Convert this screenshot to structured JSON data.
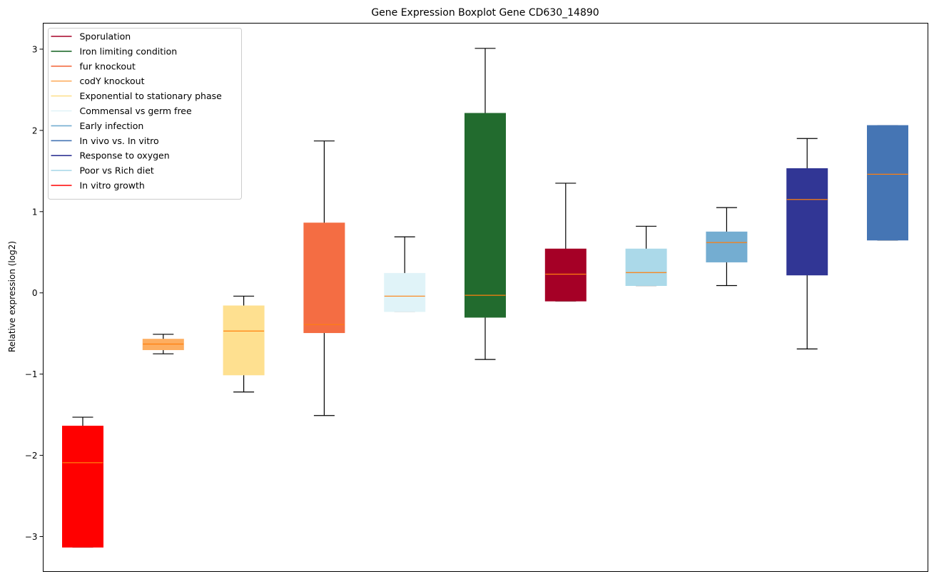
{
  "chart_data": {
    "type": "boxplot",
    "title": "Gene Expression Boxplot Gene CD630_14890",
    "xlabel": "",
    "ylabel": "Relative expression (log2)",
    "ylim": [
      -3.43,
      3.32
    ],
    "yticks": [
      -3,
      -2,
      -1,
      0,
      1,
      2,
      3
    ],
    "ytick_labels": [
      "−3",
      "−2",
      "−1",
      "0",
      "1",
      "2",
      "3"
    ],
    "grid": false,
    "legend_position": "top-left",
    "median_color": "#ff7f0e",
    "legend": [
      {
        "label": "Sporulation",
        "color": "#a50026"
      },
      {
        "label": "Iron limiting condition",
        "color": "#226b2e"
      },
      {
        "label": "fur knockout",
        "color": "#f46d43"
      },
      {
        "label": "codY knockout",
        "color": "#fdae61"
      },
      {
        "label": "Exponential to stationary phase",
        "color": "#fee090"
      },
      {
        "label": "Commensal vs germ free",
        "color": "#e0f3f8"
      },
      {
        "label": "Early infection",
        "color": "#74add1"
      },
      {
        "label": "In vivo vs. In vitro",
        "color": "#4575b4"
      },
      {
        "label": "Response to oxygen",
        "color": "#313695"
      },
      {
        "label": "Poor vs Rich diet",
        "color": "#abd9e9"
      },
      {
        "label": "In vitro growth",
        "color": "#ff0000"
      }
    ],
    "boxes": [
      {
        "name": "In vitro growth",
        "color": "#ff0000",
        "whisker_low": -3.13,
        "q1": -3.13,
        "median": -2.09,
        "q3": -1.64,
        "whisker_high": -1.53
      },
      {
        "name": "codY knockout",
        "color": "#fdae61",
        "whisker_low": -0.75,
        "q1": -0.7,
        "median": -0.63,
        "q3": -0.57,
        "whisker_high": -0.51
      },
      {
        "name": "Exponential to stationary phase",
        "color": "#fee090",
        "whisker_low": -1.22,
        "q1": -1.01,
        "median": -0.47,
        "q3": -0.16,
        "whisker_high": -0.04
      },
      {
        "name": "fur knockout",
        "color": "#f46d43",
        "whisker_low": -1.51,
        "q1": -0.49,
        "median": -0.39,
        "q3": 0.86,
        "whisker_high": 1.87
      },
      {
        "name": "Commensal vs germ free",
        "color": "#e0f3f8",
        "whisker_low": -0.23,
        "q1": -0.23,
        "median": -0.04,
        "q3": 0.24,
        "whisker_high": 0.69
      },
      {
        "name": "Iron limiting condition",
        "color": "#226b2e",
        "whisker_low": -0.82,
        "q1": -0.3,
        "median": -0.03,
        "q3": 2.21,
        "whisker_high": 3.01
      },
      {
        "name": "Sporulation",
        "color": "#a50026",
        "whisker_low": -0.1,
        "q1": -0.1,
        "median": 0.23,
        "q3": 0.54,
        "whisker_high": 1.35
      },
      {
        "name": "Poor vs Rich diet",
        "color": "#abd9e9",
        "whisker_low": 0.09,
        "q1": 0.09,
        "median": 0.25,
        "q3": 0.54,
        "whisker_high": 0.82
      },
      {
        "name": "Early infection",
        "color": "#74add1",
        "whisker_low": 0.09,
        "q1": 0.38,
        "median": 0.62,
        "q3": 0.75,
        "whisker_high": 1.05
      },
      {
        "name": "Response to oxygen",
        "color": "#313695",
        "whisker_low": -0.69,
        "q1": 0.22,
        "median": 1.15,
        "q3": 1.53,
        "whisker_high": 1.9
      },
      {
        "name": "In vivo vs. In vitro",
        "color": "#4575b4",
        "whisker_low": 0.65,
        "q1": 0.65,
        "median": 1.46,
        "q3": 2.06,
        "whisker_high": 2.06
      }
    ]
  }
}
